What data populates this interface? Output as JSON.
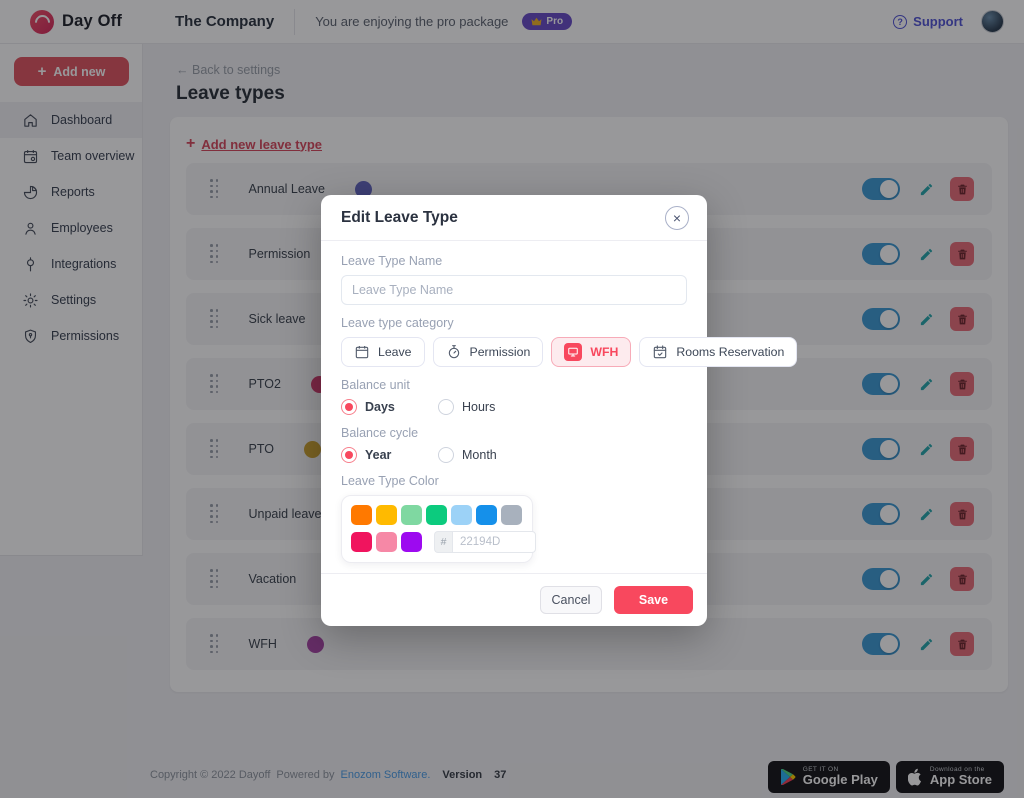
{
  "icons": {
    "plus": "+",
    "back_arrow": "←",
    "close": "×",
    "question": "?"
  },
  "header": {
    "logo_text": "Day Off",
    "company_name": "The Company",
    "package_message": "You are enjoying the pro package",
    "pro_badge": "Pro",
    "support_label": "Support"
  },
  "sidebar": {
    "add_new_label": "Add new",
    "items": [
      {
        "label": "Dashboard"
      },
      {
        "label": "Team overview"
      },
      {
        "label": "Reports"
      },
      {
        "label": "Employees"
      },
      {
        "label": "Integrations"
      },
      {
        "label": "Settings"
      },
      {
        "label": "Permissions"
      }
    ]
  },
  "main": {
    "back_link": "Back to settings",
    "page_title": "Leave types",
    "add_leave_type_label": "Add new leave type",
    "leave_types": [
      {
        "name": "Annual Leave",
        "color": "#6366BF"
      },
      {
        "name": "Permission",
        "color": "#2EAD68"
      },
      {
        "name": "Sick leave",
        "color": "#E08A35"
      },
      {
        "name": "PTO2",
        "color": "#CF3E6E"
      },
      {
        "name": "PTO",
        "color": "#CEA433"
      },
      {
        "name": "Unpaid leave",
        "color": "#F8485E"
      },
      {
        "name": "Vacation",
        "color": "#3FAE5C"
      },
      {
        "name": "WFH",
        "color": "#A848A6"
      }
    ]
  },
  "modal": {
    "title": "Edit Leave Type",
    "name_label": "Leave Type Name",
    "name_placeholder": "Leave Type Name",
    "category_label": "Leave type category",
    "categories": [
      {
        "label": "Leave"
      },
      {
        "label": "Permission"
      },
      {
        "label": "WFH"
      },
      {
        "label": "Rooms Reservation"
      }
    ],
    "balance_unit_label": "Balance unit",
    "balance_unit_options": [
      {
        "label": "Days"
      },
      {
        "label": "Hours"
      }
    ],
    "balance_cycle_label": "Balance cycle",
    "balance_cycle_options": [
      {
        "label": "Year"
      },
      {
        "label": "Month"
      }
    ],
    "color_label": "Leave Type Color",
    "palette": [
      "#FF7900",
      "#FFBA00",
      "#7FD8A1",
      "#0CCB7E",
      "#9CD2F7",
      "#1590EA",
      "#A8B1BD",
      "#F0145E",
      "#F688A6",
      "#9D0AF0"
    ],
    "hex_prefix": "#",
    "hex_placeholder": "22194D",
    "cancel_label": "Cancel",
    "save_label": "Save",
    "brand_color": "#F8485E"
  },
  "footer": {
    "copyright": "Copyright © 2022 Dayoff",
    "powered_by": "Powered by",
    "powered_link": "Enozom Software.",
    "version_label": "Version",
    "version_number": "37",
    "badges": {
      "google_tagline": "GET IT ON",
      "google_store": "Google Play",
      "apple_tagline": "Download on the",
      "apple_store": "App Store"
    }
  }
}
